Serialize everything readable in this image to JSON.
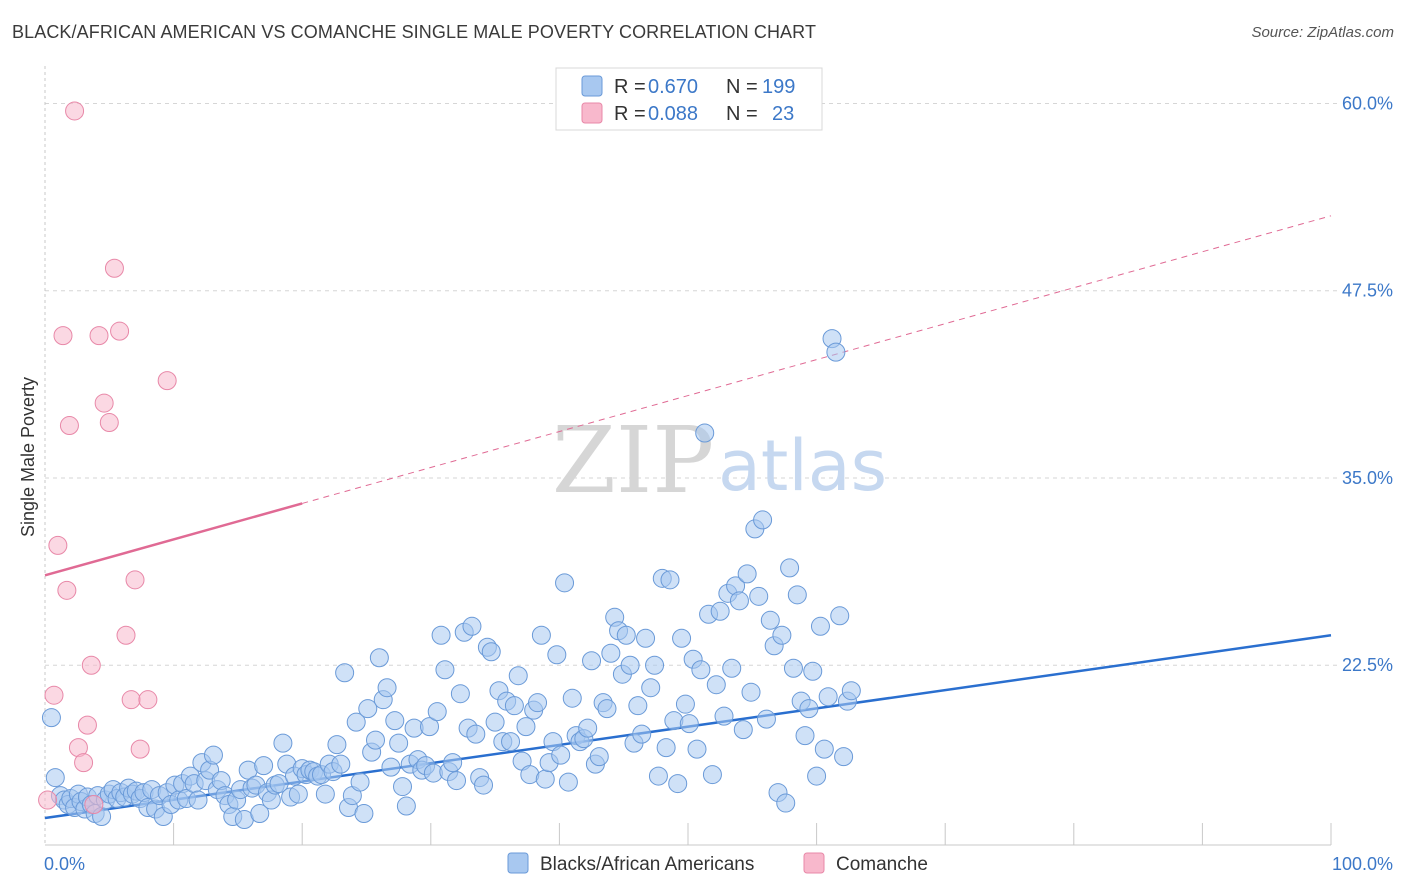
{
  "title": "BLACK/AFRICAN AMERICAN VS COMANCHE SINGLE MALE POVERTY CORRELATION CHART",
  "source": "Source: ZipAtlas.com",
  "watermark": {
    "zip": "ZIP",
    "atlas": "atlas"
  },
  "legend_top": {
    "rows": [
      {
        "r_label": "R =",
        "r_value": "0.670",
        "n_label": "N =",
        "n_value": "199",
        "color": "#a8c8f0"
      },
      {
        "r_label": "R =",
        "r_value": "0.088",
        "n_label": "N =",
        "n_value": "23",
        "color": "#f8b8cc"
      }
    ]
  },
  "chart_data": {
    "type": "scatter",
    "title": "BLACK/AFRICAN AMERICAN VS COMANCHE SINGLE MALE POVERTY CORRELATION CHART",
    "xlabel": "",
    "ylabel": "Single Male Poverty",
    "xlim": [
      0,
      100
    ],
    "ylim": [
      10.5,
      62.5
    ],
    "x_tick_labels": [
      "0.0%",
      "100.0%"
    ],
    "y_ticks": [
      22.5,
      35.0,
      47.5,
      60.0
    ],
    "y_tick_labels": [
      "22.5%",
      "35.0%",
      "47.5%",
      "60.0%"
    ],
    "grid": true,
    "legend_position": "top-center",
    "series": [
      {
        "name": "Blacks/African Americans",
        "color": "#a8c8f0",
        "stroke": "#6a9ad8",
        "trend": {
          "x0": 0,
          "y0": 12.3,
          "x1": 100,
          "y1": 24.5,
          "color": "#2a6fcf"
        },
        "points": [
          [
            0.5,
            19.0
          ],
          [
            0.8,
            15.0
          ],
          [
            1.2,
            13.8
          ],
          [
            1.5,
            13.5
          ],
          [
            1.8,
            13.2
          ],
          [
            2.0,
            13.6
          ],
          [
            2.3,
            13.0
          ],
          [
            2.6,
            13.9
          ],
          [
            2.8,
            13.4
          ],
          [
            3.1,
            12.9
          ],
          [
            3.3,
            13.7
          ],
          [
            3.6,
            13.2
          ],
          [
            3.9,
            12.6
          ],
          [
            4.1,
            13.8
          ],
          [
            4.4,
            12.4
          ],
          [
            4.7,
            13.5
          ],
          [
            5.0,
            13.9
          ],
          [
            5.3,
            14.2
          ],
          [
            5.6,
            13.6
          ],
          [
            5.9,
            14.0
          ],
          [
            6.2,
            13.7
          ],
          [
            6.5,
            14.3
          ],
          [
            6.8,
            13.9
          ],
          [
            7.1,
            14.1
          ],
          [
            7.4,
            13.6
          ],
          [
            7.7,
            14.0
          ],
          [
            8.0,
            13.0
          ],
          [
            8.3,
            14.2
          ],
          [
            8.6,
            12.9
          ],
          [
            8.9,
            13.8
          ],
          [
            9.2,
            12.4
          ],
          [
            9.5,
            14.0
          ],
          [
            9.8,
            13.2
          ],
          [
            10.1,
            14.5
          ],
          [
            10.4,
            13.5
          ],
          [
            10.7,
            14.6
          ],
          [
            11.0,
            13.6
          ],
          [
            11.3,
            15.1
          ],
          [
            11.6,
            14.6
          ],
          [
            11.9,
            13.5
          ],
          [
            12.2,
            16.0
          ],
          [
            12.5,
            14.8
          ],
          [
            12.8,
            15.5
          ],
          [
            13.1,
            16.5
          ],
          [
            13.4,
            14.2
          ],
          [
            13.7,
            14.8
          ],
          [
            14.0,
            13.8
          ],
          [
            14.3,
            13.2
          ],
          [
            14.6,
            12.4
          ],
          [
            14.9,
            13.5
          ],
          [
            15.2,
            14.2
          ],
          [
            15.5,
            12.2
          ],
          [
            15.8,
            15.5
          ],
          [
            16.1,
            14.3
          ],
          [
            16.4,
            14.5
          ],
          [
            16.7,
            12.6
          ],
          [
            17.0,
            15.8
          ],
          [
            17.3,
            14.0
          ],
          [
            17.6,
            13.5
          ],
          [
            17.9,
            14.5
          ],
          [
            18.2,
            14.6
          ],
          [
            18.5,
            17.3
          ],
          [
            18.8,
            15.9
          ],
          [
            19.1,
            13.7
          ],
          [
            19.4,
            15.1
          ],
          [
            19.7,
            13.9
          ],
          [
            20.0,
            15.6
          ],
          [
            20.3,
            15.2
          ],
          [
            20.6,
            15.5
          ],
          [
            20.9,
            15.4
          ],
          [
            21.2,
            15.1
          ],
          [
            21.5,
            15.2
          ],
          [
            21.8,
            13.9
          ],
          [
            22.1,
            15.9
          ],
          [
            22.4,
            15.4
          ],
          [
            22.7,
            17.2
          ],
          [
            23.0,
            15.9
          ],
          [
            23.3,
            22.0
          ],
          [
            23.6,
            13.0
          ],
          [
            23.9,
            13.8
          ],
          [
            24.2,
            18.7
          ],
          [
            24.5,
            14.7
          ],
          [
            24.8,
            12.6
          ],
          [
            25.1,
            19.6
          ],
          [
            25.4,
            16.7
          ],
          [
            25.7,
            17.5
          ],
          [
            26.0,
            23.0
          ],
          [
            26.3,
            20.2
          ],
          [
            26.6,
            21.0
          ],
          [
            26.9,
            15.7
          ],
          [
            27.2,
            18.8
          ],
          [
            27.5,
            17.3
          ],
          [
            27.8,
            14.4
          ],
          [
            28.1,
            13.1
          ],
          [
            28.4,
            15.9
          ],
          [
            28.7,
            18.3
          ],
          [
            29.0,
            16.2
          ],
          [
            29.3,
            15.5
          ],
          [
            29.6,
            15.8
          ],
          [
            29.9,
            18.4
          ],
          [
            30.2,
            15.3
          ],
          [
            30.5,
            19.4
          ],
          [
            30.8,
            24.5
          ],
          [
            31.1,
            22.2
          ],
          [
            31.4,
            15.4
          ],
          [
            31.7,
            16.0
          ],
          [
            32.0,
            14.8
          ],
          [
            32.3,
            20.6
          ],
          [
            32.6,
            24.7
          ],
          [
            32.9,
            18.3
          ],
          [
            33.2,
            25.1
          ],
          [
            33.5,
            17.9
          ],
          [
            33.8,
            15.0
          ],
          [
            34.1,
            14.5
          ],
          [
            34.4,
            23.7
          ],
          [
            34.7,
            23.4
          ],
          [
            35.0,
            18.7
          ],
          [
            35.3,
            20.8
          ],
          [
            35.6,
            17.4
          ],
          [
            35.9,
            20.1
          ],
          [
            36.2,
            17.4
          ],
          [
            36.5,
            19.8
          ],
          [
            36.8,
            21.8
          ],
          [
            37.1,
            16.1
          ],
          [
            37.4,
            18.4
          ],
          [
            37.7,
            15.2
          ],
          [
            38.0,
            19.5
          ],
          [
            38.3,
            20.0
          ],
          [
            38.6,
            24.5
          ],
          [
            38.9,
            14.9
          ],
          [
            39.2,
            16.0
          ],
          [
            39.5,
            17.4
          ],
          [
            39.8,
            23.2
          ],
          [
            40.1,
            16.5
          ],
          [
            40.4,
            28.0
          ],
          [
            40.7,
            14.7
          ],
          [
            41.0,
            20.3
          ],
          [
            41.3,
            17.8
          ],
          [
            41.6,
            17.4
          ],
          [
            41.9,
            17.6
          ],
          [
            42.2,
            18.3
          ],
          [
            42.5,
            22.8
          ],
          [
            42.8,
            15.9
          ],
          [
            43.1,
            16.4
          ],
          [
            43.4,
            20.0
          ],
          [
            43.7,
            19.6
          ],
          [
            44.0,
            23.3
          ],
          [
            44.3,
            25.7
          ],
          [
            44.6,
            24.8
          ],
          [
            44.9,
            21.9
          ],
          [
            45.2,
            24.5
          ],
          [
            45.5,
            22.5
          ],
          [
            45.8,
            17.3
          ],
          [
            46.1,
            19.8
          ],
          [
            46.4,
            17.9
          ],
          [
            46.7,
            24.3
          ],
          [
            47.1,
            21.0
          ],
          [
            47.4,
            22.5
          ],
          [
            47.7,
            15.1
          ],
          [
            48.0,
            28.3
          ],
          [
            48.3,
            17.0
          ],
          [
            48.6,
            28.2
          ],
          [
            48.9,
            18.8
          ],
          [
            49.2,
            14.6
          ],
          [
            49.5,
            24.3
          ],
          [
            49.8,
            19.9
          ],
          [
            50.1,
            18.6
          ],
          [
            50.4,
            22.9
          ],
          [
            50.7,
            16.9
          ],
          [
            51.0,
            22.2
          ],
          [
            51.3,
            38.0
          ],
          [
            51.6,
            25.9
          ],
          [
            51.9,
            15.2
          ],
          [
            52.2,
            21.2
          ],
          [
            52.5,
            26.1
          ],
          [
            52.8,
            19.1
          ],
          [
            53.1,
            27.3
          ],
          [
            53.4,
            22.3
          ],
          [
            53.7,
            27.8
          ],
          [
            54.0,
            26.8
          ],
          [
            54.3,
            18.2
          ],
          [
            54.6,
            28.6
          ],
          [
            54.9,
            20.7
          ],
          [
            55.2,
            31.6
          ],
          [
            55.5,
            27.1
          ],
          [
            55.8,
            32.2
          ],
          [
            56.1,
            18.9
          ],
          [
            56.4,
            25.5
          ],
          [
            56.7,
            23.8
          ],
          [
            57.0,
            14.0
          ],
          [
            57.3,
            24.5
          ],
          [
            57.6,
            13.3
          ],
          [
            57.9,
            29.0
          ],
          [
            58.2,
            22.3
          ],
          [
            58.5,
            27.2
          ],
          [
            58.8,
            20.1
          ],
          [
            59.1,
            17.8
          ],
          [
            59.4,
            19.6
          ],
          [
            59.7,
            22.1
          ],
          [
            60.0,
            15.1
          ],
          [
            60.3,
            25.1
          ],
          [
            60.6,
            16.9
          ],
          [
            60.9,
            20.4
          ],
          [
            61.2,
            44.3
          ],
          [
            61.5,
            43.4
          ],
          [
            61.8,
            25.8
          ],
          [
            62.1,
            16.4
          ],
          [
            62.4,
            20.1
          ],
          [
            62.7,
            20.8
          ]
        ]
      },
      {
        "name": "Comanche",
        "color": "#f8b8cc",
        "stroke": "#e888a8",
        "trend": {
          "x0": 0,
          "y0": 28.5,
          "x1": 100,
          "y1": 52.5,
          "solid_until": 20,
          "color": "#e06a94"
        },
        "points": [
          [
            0.2,
            13.5
          ],
          [
            0.7,
            20.5
          ],
          [
            1.0,
            30.5
          ],
          [
            1.4,
            44.5
          ],
          [
            1.7,
            27.5
          ],
          [
            1.9,
            38.5
          ],
          [
            2.3,
            59.5
          ],
          [
            2.6,
            17.0
          ],
          [
            3.0,
            16.0
          ],
          [
            3.3,
            18.5
          ],
          [
            3.6,
            22.5
          ],
          [
            3.8,
            13.2
          ],
          [
            4.2,
            44.5
          ],
          [
            4.6,
            40.0
          ],
          [
            5.0,
            38.7
          ],
          [
            5.4,
            49.0
          ],
          [
            5.8,
            44.8
          ],
          [
            6.3,
            24.5
          ],
          [
            6.7,
            20.2
          ],
          [
            7.0,
            28.2
          ],
          [
            7.4,
            16.9
          ],
          [
            8.0,
            20.2
          ],
          [
            9.5,
            41.5
          ]
        ]
      }
    ]
  },
  "bottom_legend": [
    {
      "label": "Blacks/African Americans",
      "color": "#a8c8f0"
    },
    {
      "label": "Comanche",
      "color": "#f8b8cc"
    }
  ]
}
